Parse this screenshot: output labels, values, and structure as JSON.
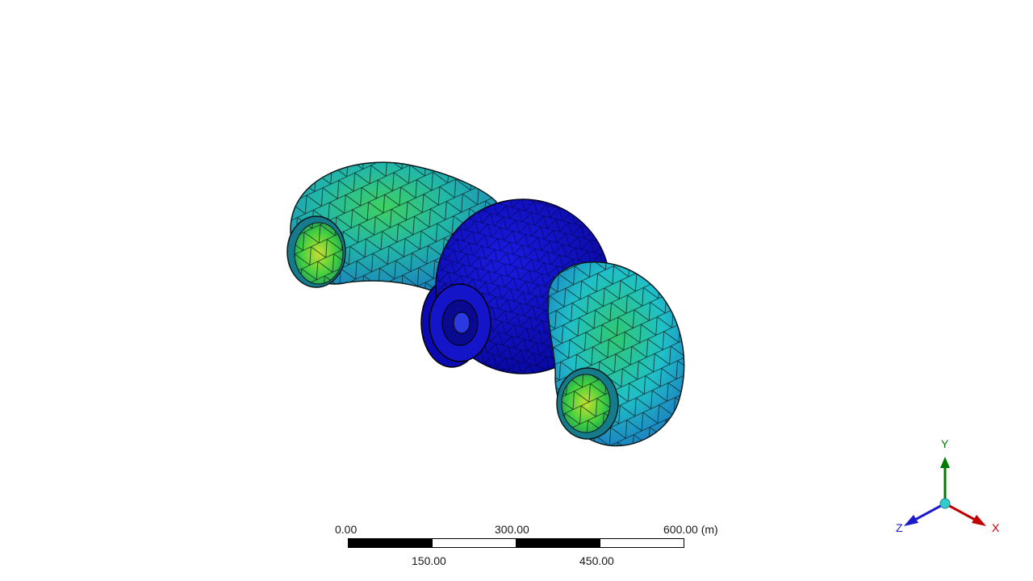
{
  "scale_bar": {
    "top_labels": [
      "0.00",
      "300.00",
      "600.00 (m)"
    ],
    "bottom_labels": [
      "150.00",
      "450.00"
    ]
  },
  "triad": {
    "y_label": "Y",
    "x_label": "X",
    "z_label": "Z",
    "colors": {
      "x": "#c00000",
      "y": "#007a00",
      "z": "#1a1acc",
      "origin": "#33cccc"
    }
  },
  "model": {
    "description_colors": {
      "sphere": "#1010c8",
      "elbow_main": "#20b8c8",
      "elbow_hot": "#40d040",
      "mesh_line": "#0a1a1a"
    }
  }
}
